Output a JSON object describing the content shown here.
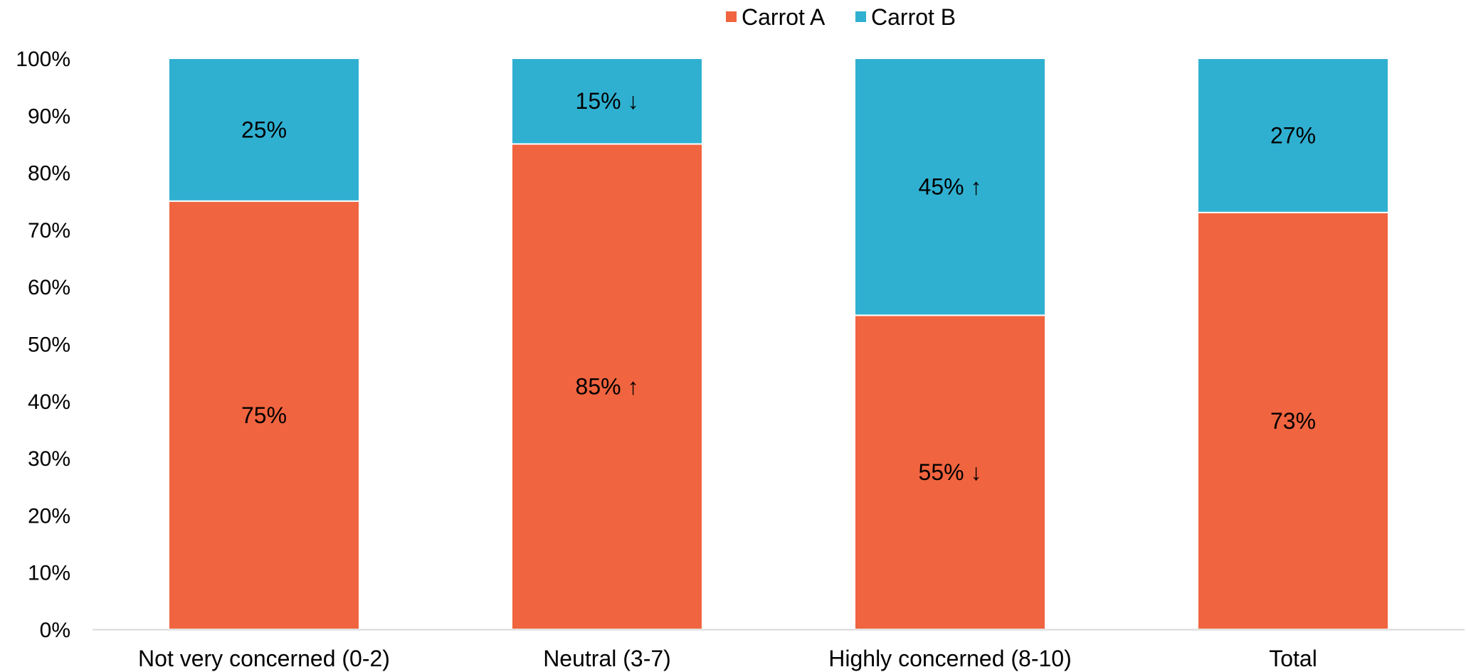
{
  "chart_data": {
    "type": "bar",
    "stacked": true,
    "categories": [
      "Not very concerned (0-2)",
      "Neutral (3-7)",
      "Highly concerned (8-10)",
      "Total"
    ],
    "series": [
      {
        "name": "Carrot A",
        "color": "#F0643F",
        "values": [
          75,
          85,
          55,
          73
        ],
        "labels": [
          "75%",
          "85% ↑",
          "55% ↓",
          "73%"
        ]
      },
      {
        "name": "Carrot B",
        "color": "#30B0D1",
        "values": [
          25,
          15,
          45,
          27
        ],
        "labels": [
          "25%",
          "15% ↓",
          "45% ↑",
          "27%"
        ]
      }
    ],
    "y_ticks": [
      "0%",
      "10%",
      "20%",
      "30%",
      "40%",
      "50%",
      "60%",
      "70%",
      "80%",
      "90%",
      "100%"
    ],
    "ylim": [
      0,
      100
    ],
    "grid": false,
    "legend": "top-center"
  }
}
